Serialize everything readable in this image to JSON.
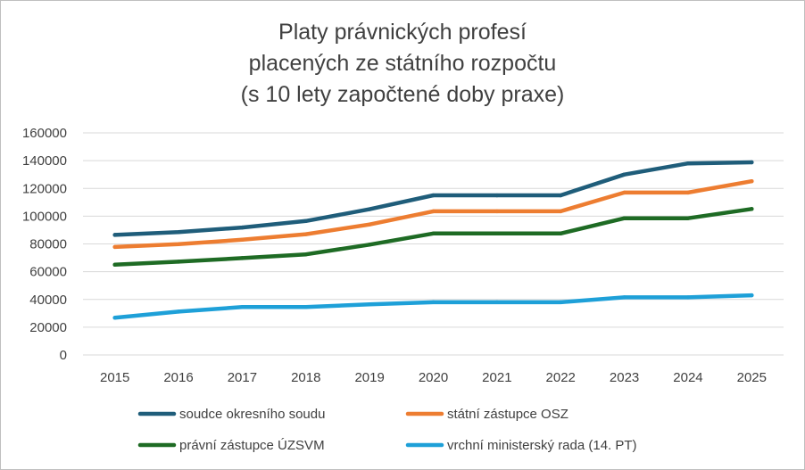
{
  "chart_data": {
    "type": "line",
    "title_lines": [
      "Platy právnických profesí",
      "placených ze státního rozpočtu",
      "(s 10 lety započtené doby praxe)"
    ],
    "categories": [
      "2015",
      "2016",
      "2017",
      "2018",
      "2019",
      "2020",
      "2021",
      "2022",
      "2023",
      "2024",
      "2025"
    ],
    "ylim": [
      0,
      160000
    ],
    "yticks": [
      0,
      20000,
      40000,
      60000,
      80000,
      100000,
      120000,
      140000,
      160000
    ],
    "grid": true,
    "legend_position": "bottom",
    "series": [
      {
        "name": "soudce okresního soudu",
        "color": "#1f5d7a",
        "values": [
          86500,
          88500,
          91800,
          96500,
          105000,
          115000,
          115000,
          115000,
          130000,
          138000,
          138800
        ]
      },
      {
        "name": "státní zástupce OSZ",
        "color": "#ed7d31",
        "values": [
          77800,
          79800,
          83000,
          87000,
          94000,
          103500,
          103500,
          103500,
          117000,
          117000,
          125200
        ]
      },
      {
        "name": "právní zástupce ÚZSVM",
        "color": "#1e6b24",
        "values": [
          65000,
          67200,
          69800,
          72500,
          79500,
          87500,
          87500,
          87500,
          98500,
          98500,
          105200
        ]
      },
      {
        "name": "vrchní ministerský rada (14. PT)",
        "color": "#1ea0d8",
        "values": [
          26800,
          31200,
          34500,
          34500,
          36500,
          38000,
          38000,
          38000,
          41500,
          41500,
          43000
        ]
      }
    ]
  }
}
